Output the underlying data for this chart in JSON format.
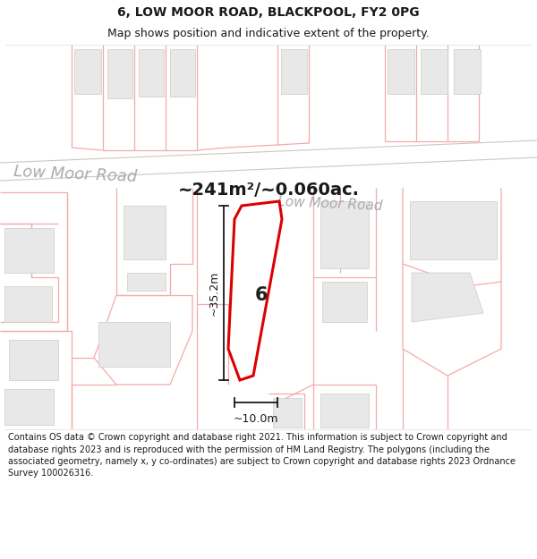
{
  "title": "6, LOW MOOR ROAD, BLACKPOOL, FY2 0PG",
  "subtitle": "Map shows position and indicative extent of the property.",
  "area_label": "~241m²/~0.060ac.",
  "number_label": "6",
  "dim_vertical": "~35.2m",
  "dim_horizontal": "~10.0m",
  "street_label1": "Low Moor Road",
  "street_label2": "Low Moor Road",
  "footer": "Contains OS data © Crown copyright and database right 2021. This information is subject to Crown copyright and database rights 2023 and is reproduced with the permission of HM Land Registry. The polygons (including the associated geometry, namely x, y co-ordinates) are subject to Crown copyright and database rights 2023 Ordnance Survey 100026316.",
  "bg_color": "#ffffff",
  "map_bg": "#ffffff",
  "road_line_color": "#c8c8c8",
  "building_fill": "#e8e8e8",
  "building_edge": "#cccccc",
  "property_line_color": "#f4aaaa",
  "highlight_fill": "#ffffff",
  "highlight_edge": "#dd0000",
  "dim_line_color": "#1a1a1a",
  "street_text_color": "#aaaaaa",
  "area_text_color": "#1a1a1a",
  "title_color": "#1a1a1a",
  "footer_color": "#1a1a1a",
  "title_fontsize": 10,
  "subtitle_fontsize": 9,
  "footer_fontsize": 7,
  "area_fontsize": 14,
  "number_fontsize": 15,
  "street_fontsize": 13,
  "dim_fontsize": 9
}
